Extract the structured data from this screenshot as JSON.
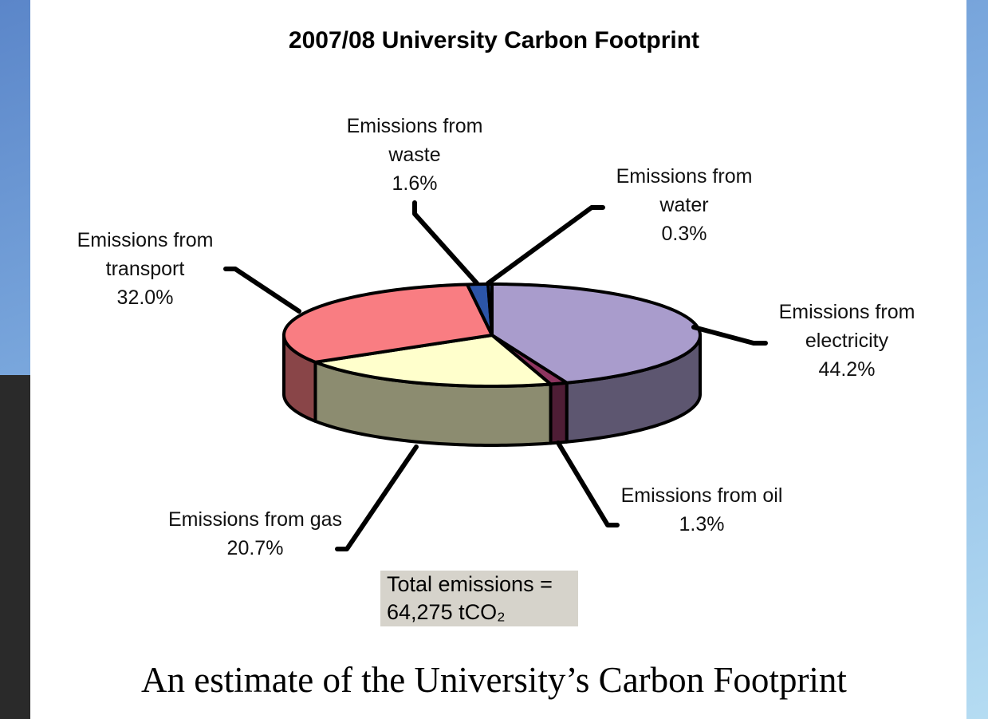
{
  "chart_data": {
    "type": "pie3d",
    "title": "2007/08 University Carbon Footprint",
    "categories": [
      "Emissions from electricity",
      "Emissions from oil",
      "Emissions from gas",
      "Emissions from transport",
      "Emissions from waste",
      "Emissions from water"
    ],
    "values": [
      44.2,
      1.3,
      20.7,
      32.0,
      1.6,
      0.3
    ],
    "value_labels": [
      "44.2%",
      "1.3%",
      "20.7%",
      "32.0%",
      "1.6%",
      "0.3%"
    ],
    "colors": [
      "#a99ccc",
      "#8e3560",
      "#ffffcc",
      "#f97d82",
      "#2c55a8",
      "#3d5aa6"
    ],
    "annotation": "Total emissions = 64,275 tCO₂"
  },
  "caption": "An estimate of the University’s Carbon Footprint"
}
